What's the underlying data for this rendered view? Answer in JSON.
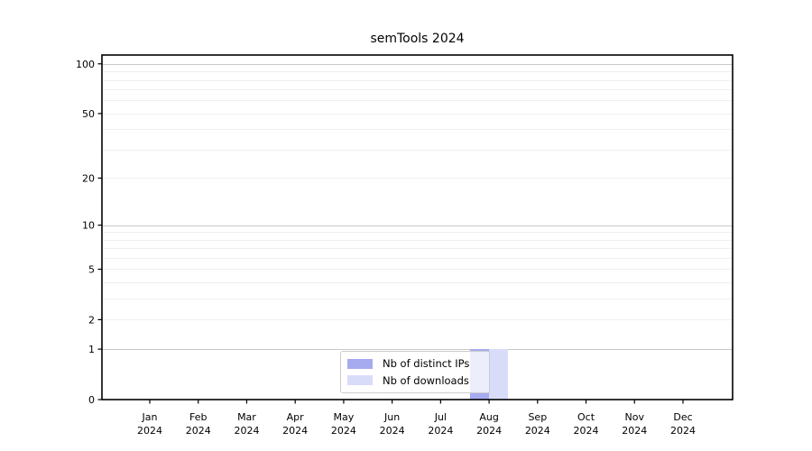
{
  "chart_data": {
    "type": "bar",
    "title": "semTools 2024",
    "categories": [
      "Jan",
      "Feb",
      "Mar",
      "Apr",
      "May",
      "Jun",
      "Jul",
      "Aug",
      "Sep",
      "Oct",
      "Nov",
      "Dec"
    ],
    "category_year": "2024",
    "series": [
      {
        "name": "Nb of distinct IPs",
        "color": "#a6abf0",
        "values": [
          0,
          0,
          0,
          0,
          0,
          0,
          0,
          1,
          0,
          0,
          0,
          0
        ]
      },
      {
        "name": "Nb of downloads",
        "color": "#d9dcf8",
        "values": [
          0,
          0,
          0,
          0,
          0,
          0,
          0,
          1,
          0,
          0,
          0,
          0
        ]
      }
    ],
    "xlabel": "",
    "ylabel": "",
    "yscale": "log10(1+v)",
    "ylim": [
      0,
      113
    ],
    "yticks": [
      0,
      1,
      2,
      5,
      10,
      20,
      50,
      100
    ],
    "grid": {
      "on": true,
      "major_lines": [
        1,
        10,
        100
      ],
      "minor_lines": [
        2,
        3,
        4,
        5,
        6,
        7,
        8,
        9,
        20,
        30,
        40,
        50,
        60,
        70,
        80,
        90
      ],
      "major_color": "#c9c9c9",
      "minor_color": "#efefef"
    },
    "legend": {
      "position": "bottom-center"
    },
    "axis_color": "#000000",
    "background_color": "#ffffff"
  }
}
